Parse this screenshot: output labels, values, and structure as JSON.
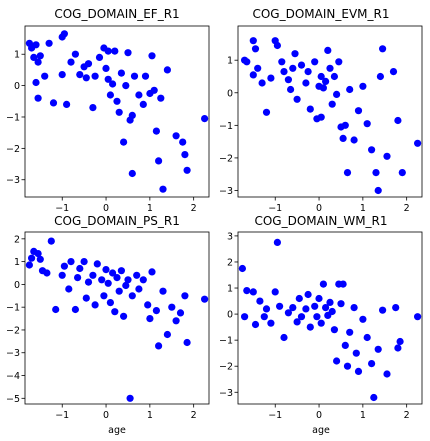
{
  "figure": {
    "background": "#ffffff",
    "marker_color": "#0000ff",
    "axes_color": "#000000"
  },
  "chart_data": [
    {
      "type": "scatter",
      "title": "COG_DOMAIN_EF_R1",
      "xlabel": "",
      "ylabel": "",
      "xlim": [
        -1.85,
        2.35
      ],
      "ylim": [
        -3.55,
        1.9
      ],
      "xticks": [
        -1,
        0,
        1,
        2
      ],
      "yticks": [
        -3,
        -2,
        -1,
        0,
        1
      ],
      "grid": false,
      "points": [
        {
          "x": -1.75,
          "y": 1.35
        },
        {
          "x": -1.7,
          "y": 1.2
        },
        {
          "x": -1.6,
          "y": 1.3
        },
        {
          "x": -1.5,
          "y": 0.95
        },
        {
          "x": -1.55,
          "y": 0.75
        },
        {
          "x": -1.65,
          "y": 0.9
        },
        {
          "x": -1.6,
          "y": 0.1
        },
        {
          "x": -1.55,
          "y": -0.4
        },
        {
          "x": -1.4,
          "y": 0.3
        },
        {
          "x": -1.3,
          "y": 1.35
        },
        {
          "x": -1.2,
          "y": -0.55
        },
        {
          "x": -1.0,
          "y": 1.55
        },
        {
          "x": -0.95,
          "y": 1.65
        },
        {
          "x": -1.0,
          "y": 0.35
        },
        {
          "x": -0.9,
          "y": -0.6
        },
        {
          "x": -0.8,
          "y": 0.75
        },
        {
          "x": -0.7,
          "y": 1.0
        },
        {
          "x": -0.6,
          "y": 0.35
        },
        {
          "x": -0.5,
          "y": 0.6
        },
        {
          "x": -0.45,
          "y": 0.25
        },
        {
          "x": -0.4,
          "y": 0.7
        },
        {
          "x": -0.3,
          "y": -0.7
        },
        {
          "x": -0.25,
          "y": 0.3
        },
        {
          "x": -0.15,
          "y": 0.9
        },
        {
          "x": -0.05,
          "y": 1.2
        },
        {
          "x": 0.05,
          "y": 1.1
        },
        {
          "x": 0.0,
          "y": 0.55
        },
        {
          "x": 0.05,
          "y": 0.2
        },
        {
          "x": 0.1,
          "y": -0.3
        },
        {
          "x": 0.15,
          "y": 0.05
        },
        {
          "x": 0.2,
          "y": 1.1
        },
        {
          "x": 0.25,
          "y": -0.5
        },
        {
          "x": 0.3,
          "y": -0.85
        },
        {
          "x": 0.35,
          "y": 0.4
        },
        {
          "x": 0.4,
          "y": -1.8
        },
        {
          "x": 0.45,
          "y": 0.0
        },
        {
          "x": 0.5,
          "y": 1.05
        },
        {
          "x": 0.55,
          "y": -1.1
        },
        {
          "x": 0.6,
          "y": -0.95
        },
        {
          "x": 0.65,
          "y": 0.3
        },
        {
          "x": 0.6,
          "y": -2.8
        },
        {
          "x": 0.75,
          "y": -0.3
        },
        {
          "x": 0.85,
          "y": -0.6
        },
        {
          "x": 0.9,
          "y": 0.3
        },
        {
          "x": 1.0,
          "y": -0.25
        },
        {
          "x": 1.05,
          "y": 0.95
        },
        {
          "x": 1.1,
          "y": -0.15
        },
        {
          "x": 1.15,
          "y": -1.45
        },
        {
          "x": 1.25,
          "y": -0.4
        },
        {
          "x": 1.3,
          "y": -3.3
        },
        {
          "x": 1.4,
          "y": 0.5
        },
        {
          "x": 1.2,
          "y": -2.4
        },
        {
          "x": 1.6,
          "y": -1.6
        },
        {
          "x": 1.75,
          "y": -1.8
        },
        {
          "x": 1.8,
          "y": -2.2
        },
        {
          "x": 1.85,
          "y": -2.7
        },
        {
          "x": 2.25,
          "y": -1.05
        }
      ]
    },
    {
      "type": "scatter",
      "title": "COG_DOMAIN_EVM_R1",
      "xlabel": "",
      "ylabel": "",
      "xlim": [
        -1.85,
        2.35
      ],
      "ylim": [
        -3.2,
        2.05
      ],
      "xticks": [
        -1,
        0,
        1,
        2
      ],
      "yticks": [
        -3,
        -2,
        -1,
        0,
        1
      ],
      "grid": false,
      "points": [
        {
          "x": -1.7,
          "y": 1.0
        },
        {
          "x": -1.65,
          "y": 0.95
        },
        {
          "x": -1.5,
          "y": 1.6
        },
        {
          "x": -1.45,
          "y": 1.35
        },
        {
          "x": -1.4,
          "y": 0.75
        },
        {
          "x": -1.5,
          "y": 0.55
        },
        {
          "x": -1.3,
          "y": 0.3
        },
        {
          "x": -1.2,
          "y": -0.6
        },
        {
          "x": -1.1,
          "y": 0.45
        },
        {
          "x": -1.0,
          "y": 1.6
        },
        {
          "x": -0.95,
          "y": 1.45
        },
        {
          "x": -0.85,
          "y": 0.95
        },
        {
          "x": -0.8,
          "y": 0.65
        },
        {
          "x": -0.7,
          "y": 0.4
        },
        {
          "x": -0.65,
          "y": 0.1
        },
        {
          "x": -0.6,
          "y": 0.75
        },
        {
          "x": -0.55,
          "y": 1.2
        },
        {
          "x": -0.5,
          "y": -0.2
        },
        {
          "x": -0.4,
          "y": 0.85
        },
        {
          "x": -0.3,
          "y": 0.3
        },
        {
          "x": -0.25,
          "y": 0.65
        },
        {
          "x": -0.2,
          "y": -0.5
        },
        {
          "x": -0.1,
          "y": 0.95
        },
        {
          "x": 0.0,
          "y": 0.2
        },
        {
          "x": 0.05,
          "y": 0.5
        },
        {
          "x": 0.1,
          "y": 0.15
        },
        {
          "x": 0.15,
          "y": 0.35
        },
        {
          "x": 0.2,
          "y": 1.3
        },
        {
          "x": 0.25,
          "y": 0.75
        },
        {
          "x": 0.3,
          "y": -0.35
        },
        {
          "x": 0.35,
          "y": 0.5
        },
        {
          "x": 0.4,
          "y": -0.05
        },
        {
          "x": 0.45,
          "y": 0.95
        },
        {
          "x": 0.5,
          "y": -1.05
        },
        {
          "x": 0.55,
          "y": -1.4
        },
        {
          "x": 0.6,
          "y": -1.0
        },
        {
          "x": 0.65,
          "y": -2.45
        },
        {
          "x": 0.7,
          "y": 0.1
        },
        {
          "x": 0.8,
          "y": -1.45
        },
        {
          "x": 0.9,
          "y": -0.55
        },
        {
          "x": 1.0,
          "y": 0.2
        },
        {
          "x": 1.1,
          "y": -0.95
        },
        {
          "x": 1.2,
          "y": -1.75
        },
        {
          "x": 1.3,
          "y": -2.45
        },
        {
          "x": 1.35,
          "y": -3.0
        },
        {
          "x": 1.4,
          "y": 0.5
        },
        {
          "x": 1.45,
          "y": 1.35
        },
        {
          "x": 1.55,
          "y": -1.95
        },
        {
          "x": 1.7,
          "y": 0.65
        },
        {
          "x": 1.8,
          "y": -0.85
        },
        {
          "x": 1.9,
          "y": -2.45
        },
        {
          "x": 2.25,
          "y": -1.55
        },
        {
          "x": 0.05,
          "y": -0.75
        },
        {
          "x": -0.05,
          "y": -0.8
        }
      ]
    },
    {
      "type": "scatter",
      "title": "COG_DOMAIN_PS_R1",
      "xlabel": "age",
      "ylabel": "",
      "xlim": [
        -1.85,
        2.35
      ],
      "ylim": [
        -5.25,
        2.3
      ],
      "xticks": [
        -1,
        0,
        1,
        2
      ],
      "yticks": [
        -5,
        -4,
        -3,
        -2,
        -1,
        0,
        1,
        2
      ],
      "grid": false,
      "points": [
        {
          "x": -1.75,
          "y": 0.85
        },
        {
          "x": -1.7,
          "y": 1.15
        },
        {
          "x": -1.65,
          "y": 1.45
        },
        {
          "x": -1.55,
          "y": 1.35
        },
        {
          "x": -1.5,
          "y": 1.1
        },
        {
          "x": -1.45,
          "y": 0.6
        },
        {
          "x": -1.35,
          "y": 0.5
        },
        {
          "x": -1.25,
          "y": 1.9
        },
        {
          "x": -1.15,
          "y": -1.1
        },
        {
          "x": -1.0,
          "y": 0.4
        },
        {
          "x": -0.95,
          "y": 0.8
        },
        {
          "x": -0.85,
          "y": -0.2
        },
        {
          "x": -0.8,
          "y": 1.0
        },
        {
          "x": -0.7,
          "y": -1.1
        },
        {
          "x": -0.65,
          "y": 0.3
        },
        {
          "x": -0.6,
          "y": 0.7
        },
        {
          "x": -0.5,
          "y": 1.0
        },
        {
          "x": -0.45,
          "y": -0.6
        },
        {
          "x": -0.4,
          "y": 0.1
        },
        {
          "x": -0.3,
          "y": 0.4
        },
        {
          "x": -0.25,
          "y": -0.9
        },
        {
          "x": -0.2,
          "y": 0.9
        },
        {
          "x": -0.1,
          "y": 0.2
        },
        {
          "x": -0.05,
          "y": -0.5
        },
        {
          "x": 0.0,
          "y": 0.65
        },
        {
          "x": 0.05,
          "y": 0.05
        },
        {
          "x": 0.1,
          "y": -0.8
        },
        {
          "x": 0.15,
          "y": 0.5
        },
        {
          "x": 0.2,
          "y": -1.2
        },
        {
          "x": 0.25,
          "y": 0.3
        },
        {
          "x": 0.3,
          "y": -0.3
        },
        {
          "x": 0.35,
          "y": 0.6
        },
        {
          "x": 0.4,
          "y": -1.4
        },
        {
          "x": 0.45,
          "y": -0.05
        },
        {
          "x": 0.5,
          "y": 0.2
        },
        {
          "x": 0.55,
          "y": -5.0
        },
        {
          "x": 0.6,
          "y": -0.5
        },
        {
          "x": 0.7,
          "y": 0.4
        },
        {
          "x": 0.75,
          "y": -0.2
        },
        {
          "x": 0.85,
          "y": 0.2
        },
        {
          "x": 0.95,
          "y": -0.9
        },
        {
          "x": 1.0,
          "y": -1.5
        },
        {
          "x": 1.05,
          "y": 0.55
        },
        {
          "x": 1.15,
          "y": -1.15
        },
        {
          "x": 1.2,
          "y": -2.7
        },
        {
          "x": 1.3,
          "y": -0.3
        },
        {
          "x": 1.4,
          "y": -2.2
        },
        {
          "x": 1.5,
          "y": -1.0
        },
        {
          "x": 1.6,
          "y": -1.6
        },
        {
          "x": 1.7,
          "y": -1.25
        },
        {
          "x": 1.8,
          "y": -0.5
        },
        {
          "x": 1.85,
          "y": -2.55
        },
        {
          "x": 2.25,
          "y": -0.65
        }
      ]
    },
    {
      "type": "scatter",
      "title": "COG_DOMAIN_WM_R1",
      "xlabel": "age",
      "ylabel": "",
      "xlim": [
        -1.85,
        2.35
      ],
      "ylim": [
        -3.45,
        3.15
      ],
      "xticks": [
        -1,
        0,
        1,
        2
      ],
      "yticks": [
        -3,
        -2,
        -1,
        0,
        1,
        2,
        3
      ],
      "grid": false,
      "points": [
        {
          "x": -1.75,
          "y": 1.75
        },
        {
          "x": -1.7,
          "y": -0.1
        },
        {
          "x": -1.65,
          "y": 0.9
        },
        {
          "x": -1.5,
          "y": 0.85
        },
        {
          "x": -1.45,
          "y": -0.4
        },
        {
          "x": -1.35,
          "y": 0.5
        },
        {
          "x": -1.25,
          "y": -0.1
        },
        {
          "x": -1.2,
          "y": 0.2
        },
        {
          "x": -1.1,
          "y": -0.35
        },
        {
          "x": -1.0,
          "y": 0.85
        },
        {
          "x": -0.95,
          "y": 2.75
        },
        {
          "x": -0.9,
          "y": 0.3
        },
        {
          "x": -0.8,
          "y": -0.9
        },
        {
          "x": -0.7,
          "y": 0.05
        },
        {
          "x": -0.6,
          "y": 0.25
        },
        {
          "x": -0.5,
          "y": -0.3
        },
        {
          "x": -0.45,
          "y": 0.6
        },
        {
          "x": -0.4,
          "y": -0.1
        },
        {
          "x": -0.3,
          "y": 0.2
        },
        {
          "x": -0.25,
          "y": 0.75
        },
        {
          "x": -0.2,
          "y": -0.5
        },
        {
          "x": -0.1,
          "y": 0.3
        },
        {
          "x": -0.05,
          "y": -0.1
        },
        {
          "x": 0.0,
          "y": 0.6
        },
        {
          "x": 0.05,
          "y": -0.35
        },
        {
          "x": 0.1,
          "y": 1.15
        },
        {
          "x": 0.15,
          "y": 0.25
        },
        {
          "x": 0.2,
          "y": -0.05
        },
        {
          "x": 0.25,
          "y": 0.45
        },
        {
          "x": 0.3,
          "y": 0.1
        },
        {
          "x": 0.35,
          "y": -0.6
        },
        {
          "x": 0.4,
          "y": -1.8
        },
        {
          "x": 0.45,
          "y": 1.15
        },
        {
          "x": 0.5,
          "y": 0.4
        },
        {
          "x": 0.55,
          "y": 1.15
        },
        {
          "x": 0.6,
          "y": -1.2
        },
        {
          "x": 0.65,
          "y": -2.0
        },
        {
          "x": 0.7,
          "y": -0.7
        },
        {
          "x": 0.8,
          "y": 0.25
        },
        {
          "x": 0.85,
          "y": -1.5
        },
        {
          "x": 0.9,
          "y": -2.2
        },
        {
          "x": 1.0,
          "y": -0.2
        },
        {
          "x": 1.1,
          "y": -0.9
        },
        {
          "x": 1.2,
          "y": -1.9
        },
        {
          "x": 1.25,
          "y": -3.2
        },
        {
          "x": 1.35,
          "y": -1.35
        },
        {
          "x": 1.45,
          "y": 0.15
        },
        {
          "x": 1.55,
          "y": -2.3
        },
        {
          "x": 1.75,
          "y": 0.25
        },
        {
          "x": 1.8,
          "y": -1.3
        },
        {
          "x": 1.85,
          "y": -1.05
        },
        {
          "x": 2.25,
          "y": -0.1
        }
      ]
    }
  ]
}
